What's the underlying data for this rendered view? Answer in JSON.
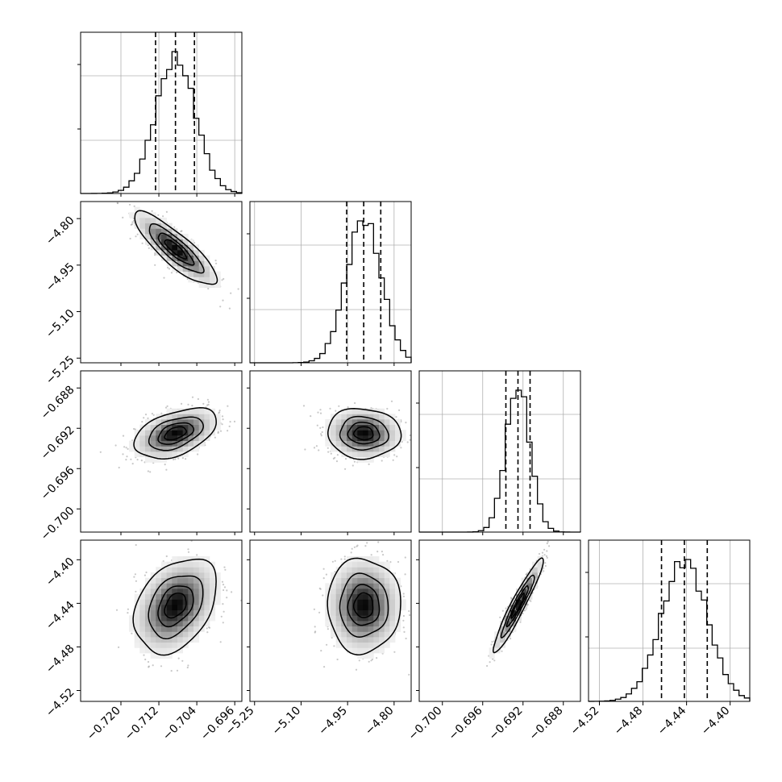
{
  "chart_data": {
    "type": "corner",
    "title": "",
    "parameters": [
      {
        "index": 0,
        "median": -0.7085,
        "sd": 0.0042,
        "quantiles": [
          -0.7127,
          -0.7085,
          -0.7045
        ],
        "range": [
          -0.7285,
          -0.6945
        ],
        "ticks": [
          -0.72,
          -0.712,
          -0.704,
          -0.696
        ],
        "tick_labels": [
          "−0.720",
          "−0.712",
          "−0.704",
          "−0.696"
        ]
      },
      {
        "index": 1,
        "median": -4.898,
        "sd": 0.057,
        "quantiles": [
          -4.953,
          -4.898,
          -4.843
        ],
        "range": [
          -5.265,
          -4.745
        ],
        "ticks": [
          -5.25,
          -5.1,
          -4.95,
          -4.8
        ],
        "tick_labels": [
          "−5.25",
          "−5.10",
          "−4.95",
          "−4.80"
        ]
      },
      {
        "index": 2,
        "median": -0.6925,
        "sd": 0.0012,
        "quantiles": [
          -0.6937,
          -0.6925,
          -0.6913
        ],
        "range": [
          -0.7023,
          -0.6863
        ],
        "ticks": [
          -0.7,
          -0.696,
          -0.692,
          -0.688
        ],
        "tick_labels": [
          "−0.700",
          "−0.696",
          "−0.692",
          "−0.688"
        ]
      },
      {
        "index": 3,
        "median": -4.442,
        "sd": 0.021,
        "quantiles": [
          -4.463,
          -4.442,
          -4.421
        ],
        "range": [
          -4.53,
          -4.382
        ],
        "ticks": [
          -4.52,
          -4.48,
          -4.44,
          -4.4
        ],
        "tick_labels": [
          "−4.52",
          "−4.48",
          "−4.44",
          "−4.40"
        ]
      }
    ],
    "correlations": [
      {
        "x": 0,
        "y": 1,
        "rho": -0.85
      },
      {
        "x": 0,
        "y": 2,
        "rho": 0.45
      },
      {
        "x": 1,
        "y": 2,
        "rho": -0.05
      },
      {
        "x": 0,
        "y": 3,
        "rho": 0.35
      },
      {
        "x": 1,
        "y": 3,
        "rho": 0.0
      },
      {
        "x": 2,
        "y": 3,
        "rho": 0.95
      }
    ],
    "bins": 30,
    "contour_levels_sigma": [
      0.5,
      1.0,
      1.5,
      2.0
    ],
    "grid": true,
    "quantile_lines": "dashed"
  }
}
